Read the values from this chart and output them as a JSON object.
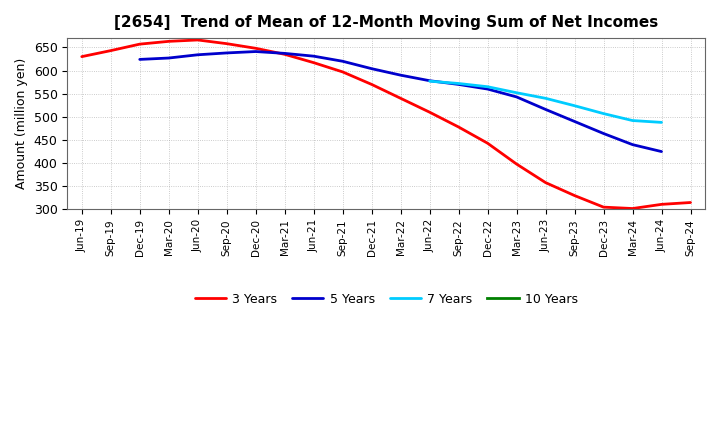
{
  "title": "[2654]  Trend of Mean of 12-Month Moving Sum of Net Incomes",
  "ylabel": "Amount (million yen)",
  "ylim": [
    300,
    670
  ],
  "yticks": [
    300,
    350,
    400,
    450,
    500,
    550,
    600,
    650
  ],
  "x_labels": [
    "Jun-19",
    "Sep-19",
    "Dec-19",
    "Mar-20",
    "Jun-20",
    "Sep-20",
    "Dec-20",
    "Mar-21",
    "Jun-21",
    "Sep-21",
    "Dec-21",
    "Mar-22",
    "Jun-22",
    "Sep-22",
    "Dec-22",
    "Mar-23",
    "Jun-23",
    "Sep-23",
    "Dec-23",
    "Mar-24",
    "Jun-24",
    "Sep-24"
  ],
  "series_order": [
    "3 Years",
    "5 Years",
    "7 Years",
    "10 Years"
  ],
  "series": {
    "3 Years": {
      "color": "#ff0000",
      "linewidth": 2.0,
      "data_x": [
        0,
        1,
        2,
        3,
        4,
        5,
        6,
        7,
        8,
        9,
        10,
        11,
        12,
        13,
        14,
        15,
        16,
        17,
        18,
        19,
        20,
        21
      ],
      "data_y": [
        630,
        643,
        657,
        663,
        666,
        658,
        648,
        635,
        617,
        597,
        570,
        540,
        510,
        478,
        443,
        398,
        358,
        330,
        305,
        302,
        311,
        315
      ]
    },
    "5 Years": {
      "color": "#0000cc",
      "linewidth": 2.0,
      "data_x": [
        2,
        3,
        4,
        5,
        6,
        7,
        8,
        9,
        10,
        11,
        12,
        13,
        14,
        15,
        16,
        17,
        18,
        19,
        20
      ],
      "data_y": [
        624,
        627,
        634,
        638,
        641,
        637,
        631,
        620,
        604,
        590,
        578,
        570,
        560,
        543,
        516,
        490,
        464,
        440,
        425
      ]
    },
    "7 Years": {
      "color": "#00ccff",
      "linewidth": 2.0,
      "data_x": [
        12,
        13,
        14,
        15,
        16,
        17,
        18,
        19,
        20
      ],
      "data_y": [
        577,
        572,
        565,
        552,
        540,
        524,
        507,
        492,
        488
      ]
    },
    "10 Years": {
      "color": "#008000",
      "linewidth": 2.0,
      "data_x": [],
      "data_y": []
    }
  },
  "background_color": "#ffffff",
  "grid_color": "#aaaaaa"
}
